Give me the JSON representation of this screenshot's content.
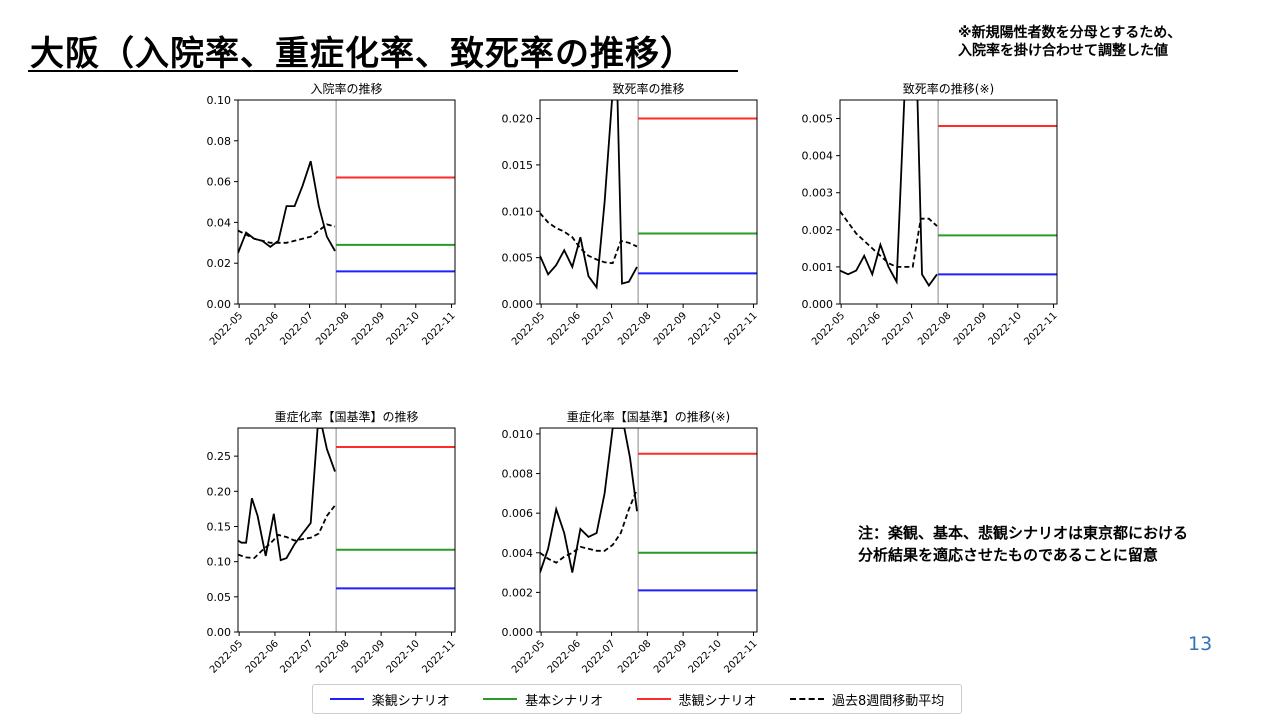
{
  "header": {
    "title": "大阪（入院率、重症化率、致死率の推移）",
    "note_line1": "※新規陽性者数を分母とするため、",
    "note_line2": "入院率を掛け合わせて調整した値"
  },
  "notes": {
    "right_line1": "注：楽観、基本、悲観シナリオは東京都における",
    "right_line2": "分析結果を適応させたものであることに留意"
  },
  "page_number": "13",
  "colors": {
    "optimistic": "#1f1fff",
    "basic": "#2a9a2a",
    "pessimistic": "#ff2a2a",
    "moving_avg": "#000000",
    "actual": "#000000"
  },
  "legend": [
    {
      "label": "楽観シナリオ",
      "color": "#1f1fff",
      "style": "solid"
    },
    {
      "label": "基本シナリオ",
      "color": "#2a9a2a",
      "style": "solid"
    },
    {
      "label": "悲観シナリオ",
      "color": "#ff2a2a",
      "style": "solid"
    },
    {
      "label": "過去8週間移動平均",
      "color": "#000000",
      "style": "dashed"
    }
  ],
  "chart_data": [
    {
      "type": "line",
      "title": "入院率の推移",
      "x_ticks": [
        "2022-05",
        "2022-06",
        "2022-07",
        "2022-08",
        "2022-09",
        "2022-10",
        "2022-11"
      ],
      "xlim": [
        "2022-04-30",
        "2022-11-04"
      ],
      "ylim": [
        0,
        0.1
      ],
      "y_ticks": [
        "0.00",
        "0.02",
        "0.04",
        "0.06",
        "0.08",
        "0.10"
      ],
      "y_values": [
        0,
        0.02,
        0.04,
        0.06,
        0.08,
        0.1
      ],
      "divider_date": "2022-07-24",
      "actual": {
        "x": [
          "2022-04-30",
          "2022-05-07",
          "2022-05-14",
          "2022-05-21",
          "2022-05-28",
          "2022-06-04",
          "2022-06-11",
          "2022-06-18",
          "2022-06-25",
          "2022-07-02",
          "2022-07-09",
          "2022-07-16",
          "2022-07-23"
        ],
        "y": [
          0.025,
          0.035,
          0.032,
          0.031,
          0.028,
          0.031,
          0.048,
          0.048,
          0.058,
          0.07,
          0.048,
          0.033,
          0.026
        ]
      },
      "moving_avg": {
        "x": [
          "2022-04-30",
          "2022-05-07",
          "2022-05-14",
          "2022-05-21",
          "2022-05-28",
          "2022-06-04",
          "2022-06-11",
          "2022-06-18",
          "2022-06-25",
          "2022-07-02",
          "2022-07-09",
          "2022-07-16",
          "2022-07-23"
        ],
        "y": [
          0.036,
          0.034,
          0.032,
          0.031,
          0.03,
          0.03,
          0.03,
          0.031,
          0.032,
          0.033,
          0.036,
          0.039,
          0.038
        ]
      },
      "scenarios": {
        "pessimistic": 0.062,
        "basic": 0.029,
        "optimistic": 0.016
      }
    },
    {
      "type": "line",
      "title": "致死率の推移",
      "x_ticks": [
        "2022-05",
        "2022-06",
        "2022-07",
        "2022-08",
        "2022-09",
        "2022-10",
        "2022-11"
      ],
      "xlim": [
        "2022-04-30",
        "2022-11-04"
      ],
      "ylim": [
        0,
        0.022
      ],
      "y_ticks": [
        "0.000",
        "0.005",
        "0.010",
        "0.015",
        "0.020"
      ],
      "y_values": [
        0,
        0.005,
        0.01,
        0.015,
        0.02
      ],
      "divider_date": "2022-07-24",
      "actual": {
        "x": [
          "2022-04-30",
          "2022-05-07",
          "2022-05-14",
          "2022-05-21",
          "2022-05-28",
          "2022-06-04",
          "2022-06-11",
          "2022-06-18",
          "2022-06-25",
          "2022-07-02",
          "2022-07-06",
          "2022-07-10",
          "2022-07-16",
          "2022-07-23"
        ],
        "y": [
          0.0052,
          0.0032,
          0.0042,
          0.0058,
          0.004,
          0.0072,
          0.003,
          0.0018,
          0.011,
          0.023,
          0.023,
          0.0022,
          0.0024,
          0.004
        ]
      },
      "moving_avg": {
        "x": [
          "2022-04-30",
          "2022-05-07",
          "2022-05-14",
          "2022-05-21",
          "2022-05-28",
          "2022-06-04",
          "2022-06-11",
          "2022-06-18",
          "2022-06-25",
          "2022-07-02",
          "2022-07-09",
          "2022-07-16",
          "2022-07-23"
        ],
        "y": [
          0.0098,
          0.0088,
          0.0082,
          0.0078,
          0.0072,
          0.006,
          0.0052,
          0.0048,
          0.0045,
          0.0044,
          0.0068,
          0.0066,
          0.0062
        ]
      },
      "scenarios": {
        "pessimistic": 0.02,
        "basic": 0.0076,
        "optimistic": 0.0033
      }
    },
    {
      "type": "line",
      "title": "致死率の推移(※)",
      "x_ticks": [
        "2022-05",
        "2022-06",
        "2022-07",
        "2022-08",
        "2022-09",
        "2022-10",
        "2022-11"
      ],
      "xlim": [
        "2022-04-30",
        "2022-11-04"
      ],
      "ylim": [
        0,
        0.0055
      ],
      "y_ticks": [
        "0.000",
        "0.001",
        "0.002",
        "0.003",
        "0.004",
        "0.005"
      ],
      "y_values": [
        0,
        0.001,
        0.002,
        0.003,
        0.004,
        0.005
      ],
      "divider_date": "2022-07-24",
      "actual": {
        "x": [
          "2022-04-30",
          "2022-05-07",
          "2022-05-14",
          "2022-05-21",
          "2022-05-28",
          "2022-06-04",
          "2022-06-11",
          "2022-06-18",
          "2022-06-25",
          "2022-07-02",
          "2022-07-06",
          "2022-07-10",
          "2022-07-16",
          "2022-07-23"
        ],
        "y": [
          0.0009,
          0.0008,
          0.0009,
          0.0013,
          0.0008,
          0.0016,
          0.001,
          0.0006,
          0.0057,
          0.0057,
          0.0057,
          0.0008,
          0.0005,
          0.0008
        ]
      },
      "moving_avg": {
        "x": [
          "2022-04-30",
          "2022-05-07",
          "2022-05-14",
          "2022-05-21",
          "2022-05-28",
          "2022-06-04",
          "2022-06-11",
          "2022-06-18",
          "2022-06-25",
          "2022-07-02",
          "2022-07-09",
          "2022-07-16",
          "2022-07-23"
        ],
        "y": [
          0.0025,
          0.0022,
          0.0019,
          0.0017,
          0.0015,
          0.0013,
          0.0011,
          0.001,
          0.001,
          0.001,
          0.0023,
          0.0023,
          0.0021
        ]
      },
      "scenarios": {
        "pessimistic": 0.0048,
        "basic": 0.00185,
        "optimistic": 0.0008
      }
    },
    {
      "type": "line",
      "title": "重症化率【国基準】の推移",
      "x_ticks": [
        "2022-05",
        "2022-06",
        "2022-07",
        "2022-08",
        "2022-09",
        "2022-10",
        "2022-11"
      ],
      "xlim": [
        "2022-04-30",
        "2022-11-04"
      ],
      "ylim": [
        0,
        0.29
      ],
      "y_ticks": [
        "0.00",
        "0.05",
        "0.10",
        "0.15",
        "0.20",
        "0.25"
      ],
      "y_values": [
        0,
        0.05,
        0.1,
        0.15,
        0.2,
        0.25
      ],
      "divider_date": "2022-07-24",
      "actual": {
        "x": [
          "2022-04-30",
          "2022-05-03",
          "2022-05-07",
          "2022-05-12",
          "2022-05-17",
          "2022-05-24",
          "2022-05-31",
          "2022-06-06",
          "2022-06-11",
          "2022-06-18",
          "2022-06-25",
          "2022-07-02",
          "2022-07-08",
          "2022-07-12",
          "2022-07-16",
          "2022-07-23"
        ],
        "y": [
          0.13,
          0.127,
          0.127,
          0.19,
          0.165,
          0.108,
          0.168,
          0.102,
          0.105,
          0.125,
          0.14,
          0.155,
          0.29,
          0.29,
          0.26,
          0.228
        ]
      },
      "moving_avg": {
        "x": [
          "2022-04-30",
          "2022-05-07",
          "2022-05-14",
          "2022-05-21",
          "2022-05-28",
          "2022-06-04",
          "2022-06-11",
          "2022-06-18",
          "2022-06-25",
          "2022-07-02",
          "2022-07-09",
          "2022-07-16",
          "2022-07-23"
        ],
        "y": [
          0.11,
          0.106,
          0.105,
          0.116,
          0.126,
          0.138,
          0.135,
          0.13,
          0.132,
          0.134,
          0.14,
          0.165,
          0.18
        ]
      },
      "scenarios": {
        "pessimistic": 0.263,
        "basic": 0.117,
        "optimistic": 0.062
      }
    },
    {
      "type": "line",
      "title": "重症化率【国基準】の推移(※)",
      "x_ticks": [
        "2022-05",
        "2022-06",
        "2022-07",
        "2022-08",
        "2022-09",
        "2022-10",
        "2022-11"
      ],
      "xlim": [
        "2022-04-30",
        "2022-11-04"
      ],
      "ylim": [
        0,
        0.0103
      ],
      "y_ticks": [
        "0.000",
        "0.002",
        "0.004",
        "0.006",
        "0.008",
        "0.010"
      ],
      "y_values": [
        0,
        0.002,
        0.004,
        0.006,
        0.008,
        0.01
      ],
      "divider_date": "2022-07-24",
      "actual": {
        "x": [
          "2022-04-30",
          "2022-05-07",
          "2022-05-14",
          "2022-05-21",
          "2022-05-28",
          "2022-06-04",
          "2022-06-11",
          "2022-06-18",
          "2022-06-25",
          "2022-07-02",
          "2022-07-06",
          "2022-07-12",
          "2022-07-17",
          "2022-07-23"
        ],
        "y": [
          0.003,
          0.0042,
          0.0062,
          0.005,
          0.003,
          0.0052,
          0.0048,
          0.005,
          0.007,
          0.0103,
          0.0103,
          0.0103,
          0.0088,
          0.0061
        ]
      },
      "moving_avg": {
        "x": [
          "2022-04-30",
          "2022-05-07",
          "2022-05-14",
          "2022-05-21",
          "2022-05-28",
          "2022-06-04",
          "2022-06-11",
          "2022-06-18",
          "2022-06-25",
          "2022-07-02",
          "2022-07-09",
          "2022-07-16",
          "2022-07-23"
        ],
        "y": [
          0.004,
          0.0037,
          0.0035,
          0.0038,
          0.004,
          0.0043,
          0.0042,
          0.0041,
          0.0041,
          0.0044,
          0.005,
          0.0062,
          0.0072
        ]
      },
      "scenarios": {
        "pessimistic": 0.009,
        "basic": 0.004,
        "optimistic": 0.0021
      }
    }
  ]
}
